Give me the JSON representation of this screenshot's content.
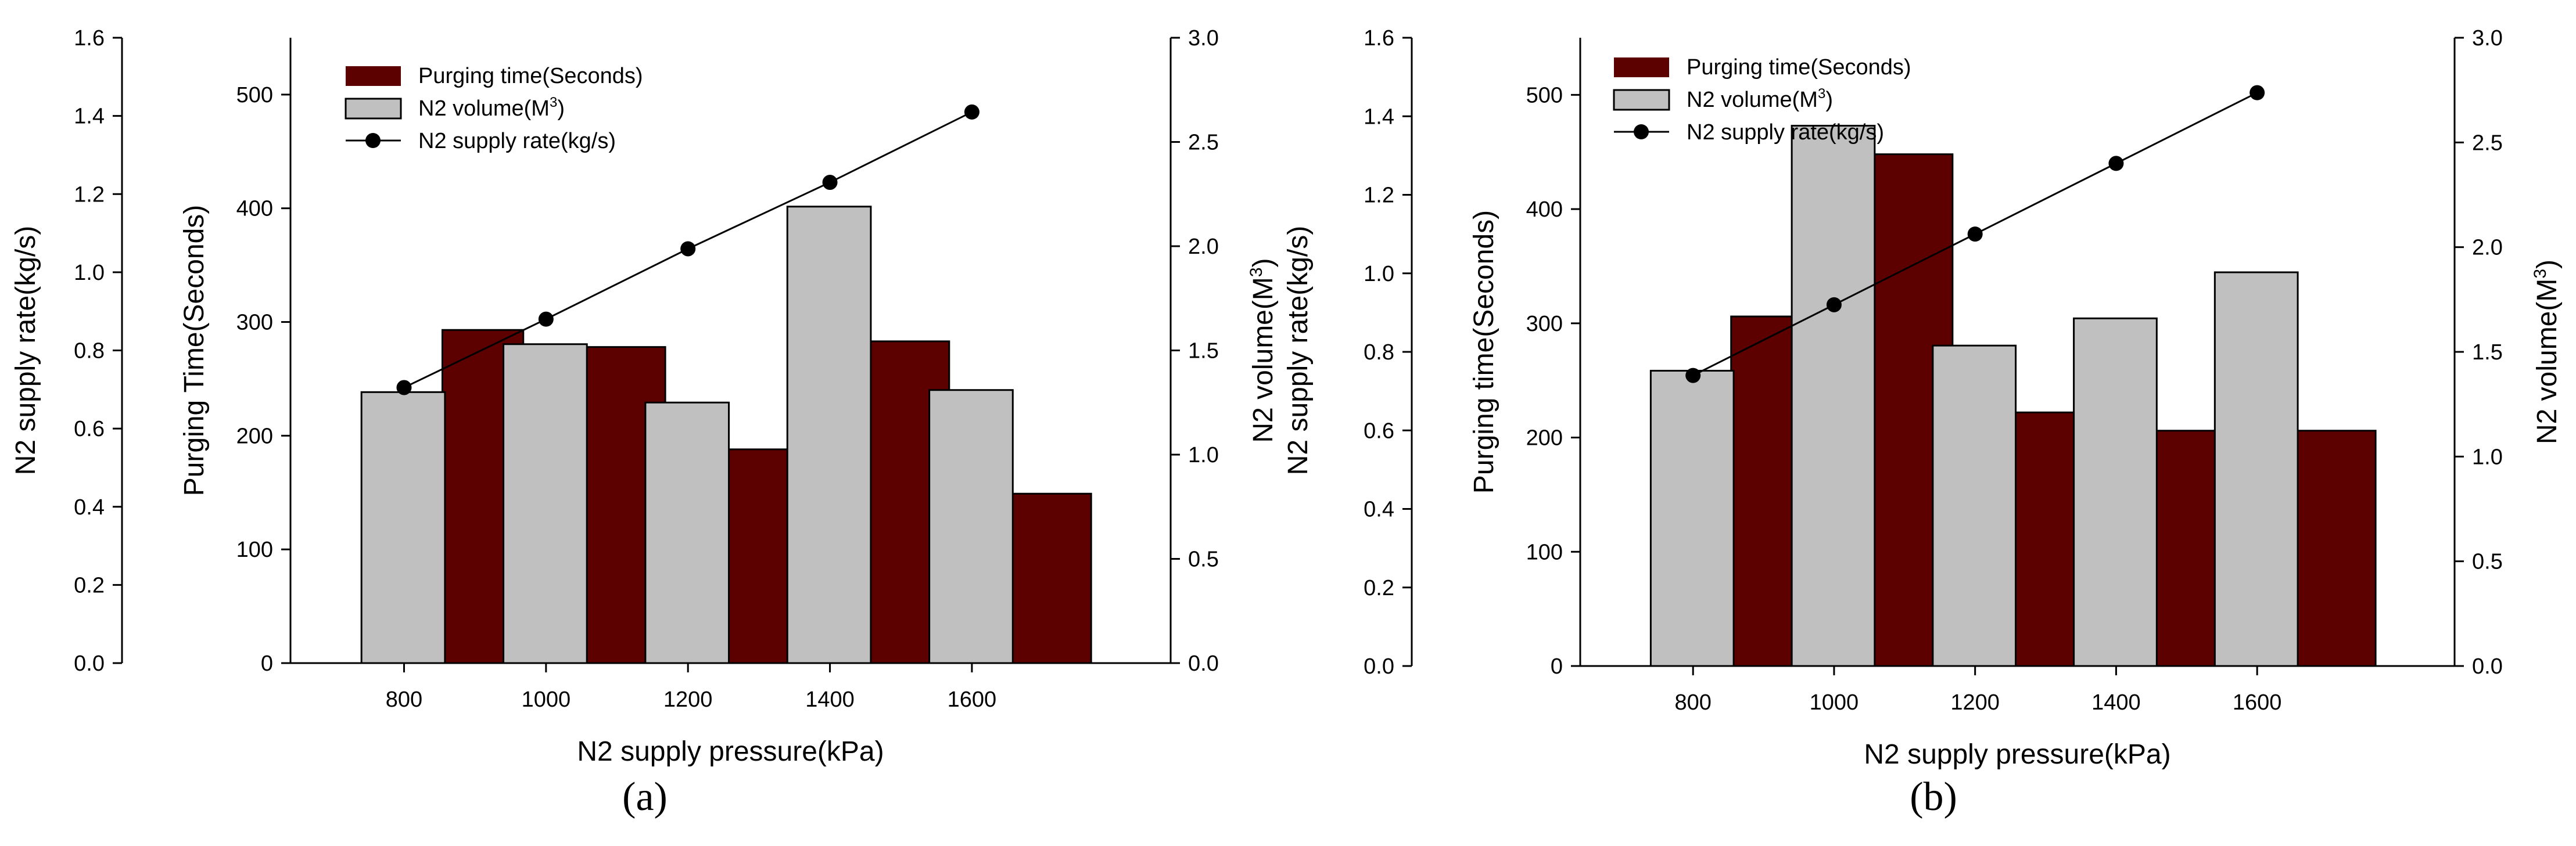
{
  "colors": {
    "purge": "#5c0000",
    "volume": "#c0c0c0",
    "line": "#000000"
  },
  "chart_data": [
    {
      "type": "bar",
      "panel": "a",
      "caption": "(a)",
      "categories": [
        "800",
        "1000",
        "1200",
        "1400",
        "1600"
      ],
      "series": [
        {
          "name": "Purging time(Seconds)",
          "axis": "purge",
          "values": [
            293,
            278,
            188,
            283,
            149
          ]
        },
        {
          "name": "N2 volume(M3)",
          "axis": "volume",
          "values": [
            1.3,
            1.53,
            1.25,
            2.19,
            1.31
          ]
        },
        {
          "name": "N2 supply rate(kg/s)",
          "axis": "rate",
          "type": "line",
          "values": [
            0.705,
            0.88,
            1.06,
            1.23,
            1.41
          ]
        }
      ],
      "legend": [
        {
          "text": "Purging time(Seconds)",
          "kind": "purge"
        },
        {
          "text": "N2 volume(M",
          "sup": "3",
          "close": ")",
          "kind": "volume"
        },
        {
          "text": "N2 supply rate(kg/s)",
          "kind": "line"
        }
      ],
      "xlabel": "N2 supply pressure(kPa)",
      "purge_axis": {
        "label": "Purging Time(Seconds)",
        "range": [
          0,
          550
        ],
        "ticks": [
          "0",
          "100",
          "200",
          "300",
          "400",
          "500"
        ]
      },
      "rate_axis": {
        "label": "N2 supply rate(kg/s)",
        "range": [
          0,
          1.6
        ],
        "ticks": [
          "0.0",
          "0.2",
          "0.4",
          "0.6",
          "0.8",
          "1.0",
          "1.2",
          "1.4",
          "1.6"
        ]
      },
      "volume_axis": {
        "label_main": "N2 volume(M",
        "label_sup": "3",
        "label_close": ")",
        "range": [
          0,
          3.0
        ],
        "ticks": [
          "0.0",
          "0.5",
          "1.0",
          "1.5",
          "2.0",
          "2.5",
          "3.0"
        ]
      },
      "extra_label": "N2 supply rate(kg/s)"
    },
    {
      "type": "bar",
      "panel": "b",
      "caption": "(b)",
      "categories": [
        "800",
        "1000",
        "1200",
        "1400",
        "1600"
      ],
      "series": [
        {
          "name": "Purging time(Seconds)",
          "axis": "purge",
          "values": [
            306,
            448,
            222,
            206,
            206
          ]
        },
        {
          "name": "N2 volume(M3)",
          "axis": "volume",
          "values": [
            1.41,
            2.58,
            1.53,
            1.66,
            1.88
          ]
        },
        {
          "name": "N2 supply rate(kg/s)",
          "axis": "rate",
          "type": "line",
          "values": [
            0.74,
            0.92,
            1.1,
            1.28,
            1.46
          ]
        }
      ],
      "legend": [
        {
          "text": "Purging time(Seconds)",
          "kind": "purge"
        },
        {
          "text": "N2 volume(M",
          "sup": "3",
          "close": ")",
          "kind": "volume"
        },
        {
          "text": "N2 supply rate(kg/s)",
          "kind": "line"
        }
      ],
      "xlabel": "N2 supply pressure(kPa)",
      "purge_axis": {
        "label": "Purging time(Seconds)",
        "range": [
          0,
          550
        ],
        "ticks": [
          "0",
          "100",
          "200",
          "300",
          "400",
          "500"
        ]
      },
      "rate_axis": {
        "label": "",
        "range": [
          0,
          1.6
        ],
        "ticks": [
          "0.0",
          "0.2",
          "0.4",
          "0.6",
          "0.8",
          "1.0",
          "1.2",
          "1.4",
          "1.6"
        ]
      },
      "volume_axis": {
        "label_main": "N2 volume(M",
        "label_sup": "3",
        "label_close": ")",
        "range": [
          0,
          3.0
        ],
        "ticks": [
          "0.0",
          "0.5",
          "1.0",
          "1.5",
          "2.0",
          "2.5",
          "3.0"
        ]
      },
      "extra_label": ""
    }
  ]
}
